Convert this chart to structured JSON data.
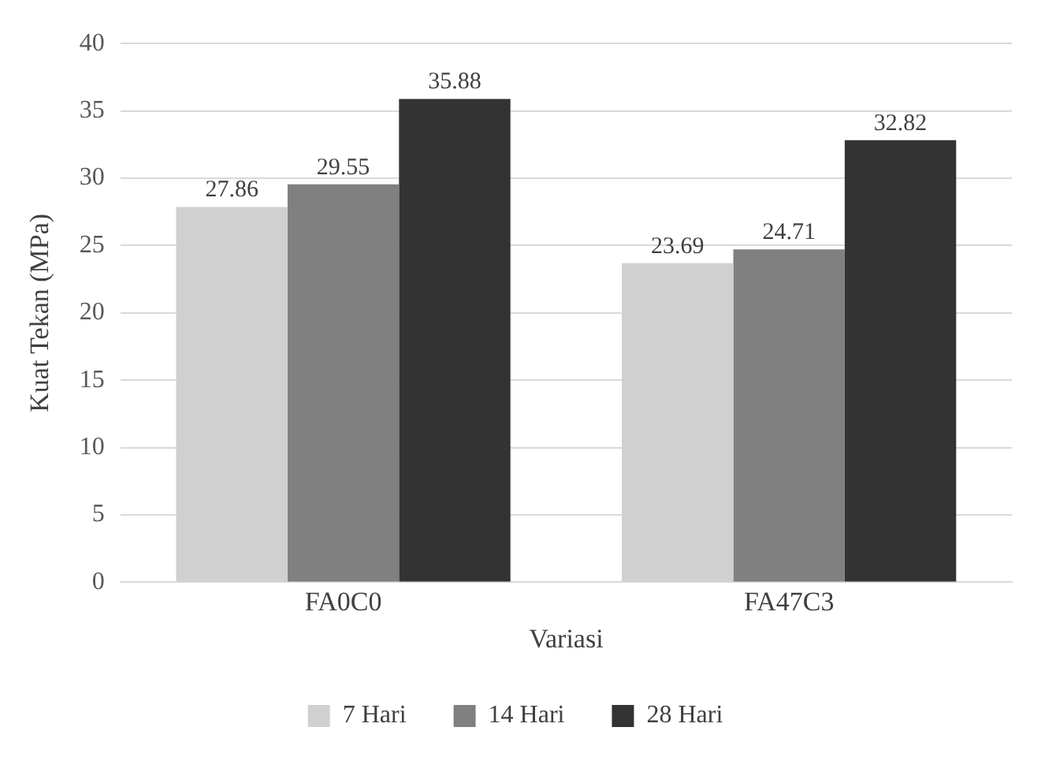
{
  "chart_data": {
    "type": "bar",
    "xlabel": "Variasi",
    "ylabel": "Kuat Tekan (MPa)",
    "categories": [
      "FA0C0",
      "FA47C3"
    ],
    "series": [
      {
        "name": "7 Hari",
        "color": "#d0d0d0",
        "values": [
          27.86,
          23.69
        ]
      },
      {
        "name": "14 Hari",
        "color": "#808080",
        "values": [
          29.55,
          24.71
        ]
      },
      {
        "name": "28 Hari",
        "color": "#333333",
        "values": [
          35.88,
          32.82
        ]
      }
    ],
    "ylim": [
      0,
      40
    ],
    "yticks": [
      0,
      5,
      10,
      15,
      20,
      25,
      30,
      35,
      40
    ],
    "grid": "y",
    "legend": "bottom",
    "data_labels": true
  }
}
